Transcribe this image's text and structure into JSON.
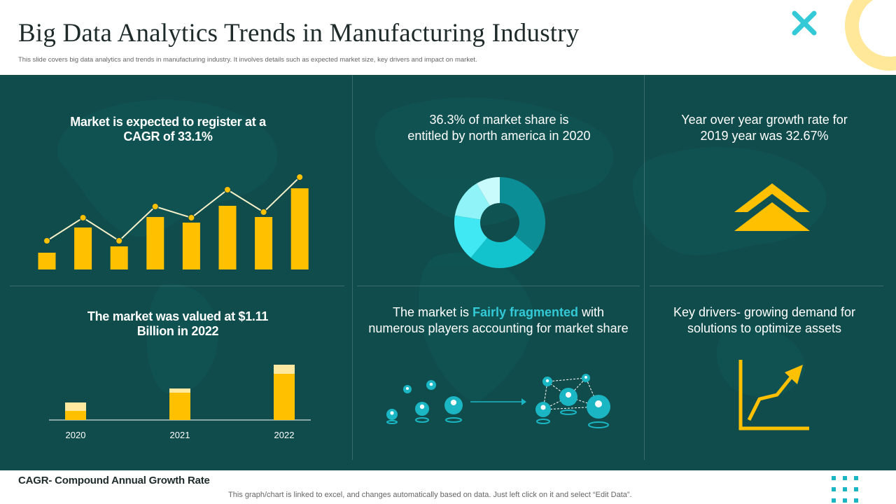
{
  "header": {
    "title": "Big Data Analytics Trends in Manufacturing Industry",
    "subtitle": "This slide covers big data analytics and trends in manufacturing industry. It involves details such as expected market size, key drivers and impact on market."
  },
  "cards": {
    "cagr": {
      "line1": "Market is expected to register at a",
      "line2": "CAGR of 33.1%"
    },
    "share": {
      "line1": "36.3% of market share is",
      "line2": "entitled by north america in 2020"
    },
    "growth": {
      "line1": "Year over year growth rate for",
      "line2": "2019 year was  32.67%"
    },
    "valued": {
      "line1": "The market was valued at $1.11",
      "line2": "Billion in 2022"
    },
    "fragmented": {
      "prefix": "The market is ",
      "highlight": "Fairly  fragmented",
      "suffix": " with",
      "line2": "numerous players accounting for market share"
    },
    "drivers": {
      "line1": "Key drivers- growing demand for",
      "line2": "solutions to optimize assets"
    }
  },
  "chart_data": [
    {
      "type": "bar",
      "chart": "cagr-bar-line",
      "bar_values": [
        24,
        60,
        33,
        75,
        67,
        91,
        75,
        116
      ],
      "line_values": [
        41,
        74,
        41,
        90,
        74,
        114,
        82,
        132
      ],
      "colors": {
        "bar": "#ffc000",
        "line": "#f5f0c8",
        "marker": "#ffc000"
      }
    },
    {
      "type": "pie",
      "chart": "share-donut",
      "values": [
        36.3,
        24.7,
        16.5,
        14.0,
        8.5
      ],
      "colors": [
        "#0b8e96",
        "#12c2cc",
        "#3fe8f2",
        "#8ff3f7",
        "#c9fbfc"
      ]
    },
    {
      "type": "bar",
      "chart": "yearly-valuation",
      "categories": [
        "2020",
        "2021",
        "2022"
      ],
      "series": [
        {
          "values": [
            13,
            39,
            66
          ]
        },
        {
          "values": [
            12,
            6,
            13
          ]
        }
      ],
      "colors": [
        "#ffc000",
        "#ffe8a0"
      ]
    }
  ],
  "footer": {
    "title": "CAGR- Compound Annual Growth Rate",
    "note": "This graph/chart is linked to excel,  and changes automatically based on data. Just left click on it and select “Edit Data”."
  },
  "theme": {
    "panel": "#114c4c",
    "accent": "#ffc000",
    "highlight": "#33c9d6"
  }
}
